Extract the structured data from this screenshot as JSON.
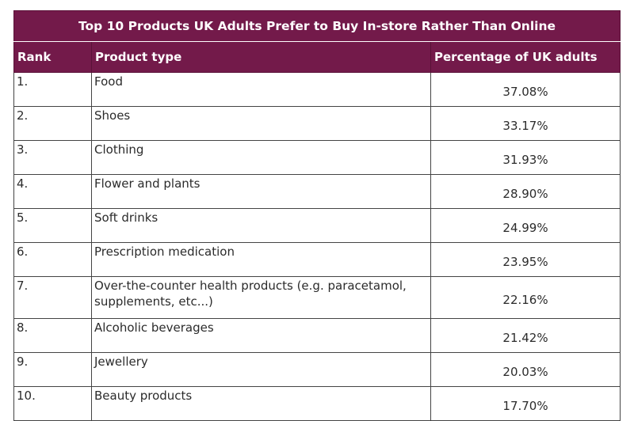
{
  "chart_data": {
    "type": "table",
    "title": "Top 10 Products UK Adults Prefer to Buy In-store Rather Than Online",
    "columns": [
      "Rank",
      "Product type",
      "Percentage of UK adults"
    ],
    "rows": [
      {
        "rank": "1.",
        "product": "Food",
        "pct": "37.08%"
      },
      {
        "rank": "2.",
        "product": "Shoes",
        "pct": "33.17%"
      },
      {
        "rank": "3.",
        "product": "Clothing",
        "pct": "31.93%"
      },
      {
        "rank": "4.",
        "product": "Flower and plants",
        "pct": "28.90%"
      },
      {
        "rank": "5.",
        "product": "Soft drinks",
        "pct": "24.99%"
      },
      {
        "rank": "6.",
        "product": "Prescription medication",
        "pct": "23.95%"
      },
      {
        "rank": "7.",
        "product": "Over-the-counter health products (e.g. paracetamol, supplements, etc...)",
        "pct": "22.16%"
      },
      {
        "rank": "8.",
        "product": "Alcoholic beverages",
        "pct": "21.42%"
      },
      {
        "rank": "9.",
        "product": "Jewellery",
        "pct": "20.03%"
      },
      {
        "rank": "10.",
        "product": "Beauty products",
        "pct": "17.70%"
      }
    ],
    "values": [
      37.08,
      33.17,
      31.93,
      28.9,
      24.99,
      23.95,
      22.16,
      21.42,
      20.03,
      17.7
    ],
    "header_color": "#731a4a",
    "header_text_color": "#ffffff"
  }
}
